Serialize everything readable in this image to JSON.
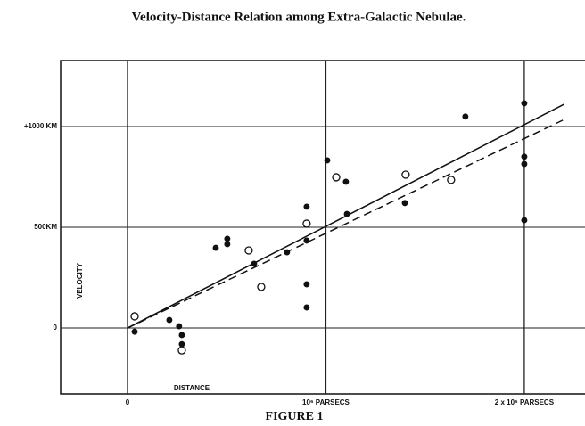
{
  "chart_data": {
    "type": "scatter",
    "title": "Velocity-Distance Relation among Extra-Galactic Nebulae.",
    "caption": "FIGURE 1",
    "xlabel": "DISTANCE",
    "ylabel": "VELOCITY",
    "xlim": [
      -0.337,
      2.306
    ],
    "ylim": [
      -327,
      1327
    ],
    "xticks": [
      0,
      {
        "value": 1,
        "label": "10⁶ PARSECS"
      },
      {
        "value": 2,
        "label": "2 x 10⁶ PARSECS"
      }
    ],
    "yticks": [
      0,
      {
        "value": 500,
        "label": "500KM"
      },
      {
        "value": 1000,
        "label": "+1000 KM"
      }
    ],
    "grid": true,
    "series": [
      {
        "marker": "filled",
        "color": "#111111",
        "x": [
          0.036,
          0.211,
          0.26,
          0.274,
          0.274,
          0.445,
          0.503,
          0.503,
          0.638,
          0.804,
          0.903,
          0.903,
          0.903,
          0.903,
          1.007,
          1.101,
          1.106,
          1.398,
          1.703,
          2.0,
          2.0,
          2.0,
          2.0
        ],
        "values": [
          -18,
          40,
          9,
          -35,
          -80,
          398,
          443,
          416,
          319,
          376,
          602,
          434,
          217,
          102,
          832,
          726,
          566,
          620,
          1049,
          1115,
          850,
          814,
          535
        ]
      },
      {
        "marker": "open",
        "color": "#111111",
        "x": [
          0.036,
          0.274,
          0.611,
          0.674,
          0.903,
          1.052,
          1.402,
          1.631
        ],
        "values": [
          58,
          -111,
          385,
          204,
          518,
          748,
          761,
          735
        ]
      }
    ],
    "lines": [
      {
        "dashed": false,
        "color": "#111111",
        "x": [
          0,
          2.2
        ],
        "values": [
          0,
          1110
        ]
      },
      {
        "dashed": true,
        "color": "#111111",
        "x": [
          0,
          2.2
        ],
        "values": [
          0,
          1034
        ]
      }
    ]
  }
}
